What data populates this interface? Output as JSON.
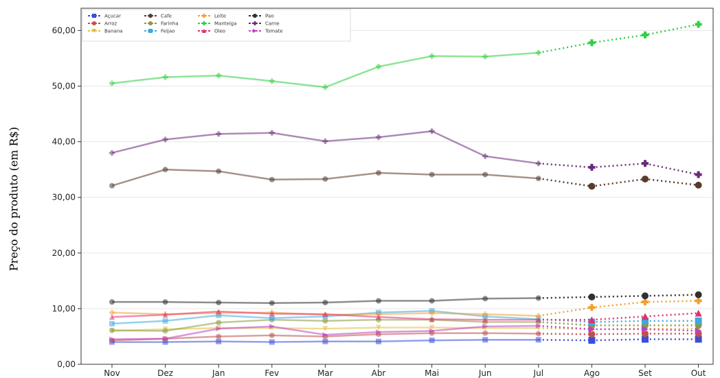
{
  "chart_data": {
    "type": "line",
    "ylabel": "Preço do produto (em R$)",
    "xlabel": "",
    "title": "",
    "categories": [
      "Nov",
      "Dez",
      "Jan",
      "Fev",
      "Mar",
      "Abr",
      "Mai",
      "Jun",
      "Jul",
      "Ago",
      "Set",
      "Out"
    ],
    "y_ticks": [
      "0,00",
      "10,00",
      "20,00",
      "30,00",
      "40,00",
      "50,00",
      "60,00"
    ],
    "ylim": [
      0,
      64
    ],
    "grid": "horizontal",
    "legend_position": "top-left",
    "forecast_start_index": 8,
    "series": [
      {
        "name": "Açucar",
        "color": "#3a4fd8",
        "marker": "s",
        "values": [
          4.0,
          4.0,
          4.1,
          4.0,
          4.1,
          4.1,
          4.3,
          4.4,
          4.4,
          4.3,
          4.5,
          4.5
        ]
      },
      {
        "name": "Arroz",
        "color": "#c0504d",
        "marker": "o",
        "values": [
          4.3,
          4.6,
          5.0,
          5.2,
          5.0,
          5.4,
          5.6,
          5.6,
          5.5,
          5.4,
          5.5,
          5.5
        ]
      },
      {
        "name": "Banana",
        "color": "#e0c040",
        "marker": "v",
        "values": [
          6.0,
          6.3,
          6.5,
          6.5,
          6.4,
          6.6,
          6.6,
          6.5,
          6.5,
          6.3,
          6.4,
          6.4
        ]
      },
      {
        "name": "Cafe",
        "color": "#5a3a2a",
        "marker": "o",
        "values": [
          32.1,
          35.0,
          34.7,
          33.2,
          33.3,
          34.4,
          34.1,
          34.1,
          33.4,
          32.0,
          33.3,
          32.2
        ]
      },
      {
        "name": "Farinha",
        "color": "#8a9a40",
        "marker": "o",
        "values": [
          6.1,
          6.0,
          7.5,
          8.0,
          7.8,
          8.0,
          8.0,
          7.6,
          7.6,
          7.0,
          7.0,
          7.0
        ]
      },
      {
        "name": "Feijao",
        "color": "#40a8e0",
        "marker": "s",
        "values": [
          7.3,
          7.8,
          8.8,
          8.3,
          8.6,
          9.3,
          9.6,
          8.6,
          8.1,
          7.6,
          7.8,
          7.8
        ]
      },
      {
        "name": "Leite",
        "color": "#f0a030",
        "marker": "P",
        "values": [
          9.3,
          9.0,
          9.2,
          9.3,
          8.9,
          9.0,
          9.2,
          9.0,
          8.7,
          10.2,
          11.2,
          11.4
        ]
      },
      {
        "name": "Manteiga",
        "color": "#30d040",
        "marker": "P",
        "values": [
          50.5,
          51.6,
          51.9,
          50.9,
          49.8,
          53.5,
          55.4,
          55.3,
          56.0,
          57.8,
          59.2,
          61.1
        ]
      },
      {
        "name": "Oleo",
        "color": "#e03070",
        "marker": "^",
        "values": [
          8.5,
          8.9,
          9.5,
          9.1,
          9.0,
          8.5,
          8.1,
          8.0,
          8.0,
          8.0,
          8.6,
          9.2
        ]
      },
      {
        "name": "Pao",
        "color": "#303030",
        "marker": "o",
        "values": [
          11.2,
          11.2,
          11.1,
          11.0,
          11.1,
          11.4,
          11.4,
          11.8,
          11.9,
          12.1,
          12.3,
          12.5
        ]
      },
      {
        "name": "Carne",
        "color": "#6a2a78",
        "marker": "P",
        "values": [
          38.0,
          40.4,
          41.4,
          41.6,
          40.1,
          40.8,
          41.9,
          37.4,
          36.1,
          35.4,
          36.1,
          34.1
        ]
      },
      {
        "name": "Tomate",
        "color": "#c040c0",
        "marker": ">",
        "values": [
          4.5,
          4.6,
          6.4,
          6.8,
          5.3,
          5.8,
          6.0,
          6.8,
          6.9,
          6.3,
          6.3,
          6.0
        ]
      }
    ]
  }
}
